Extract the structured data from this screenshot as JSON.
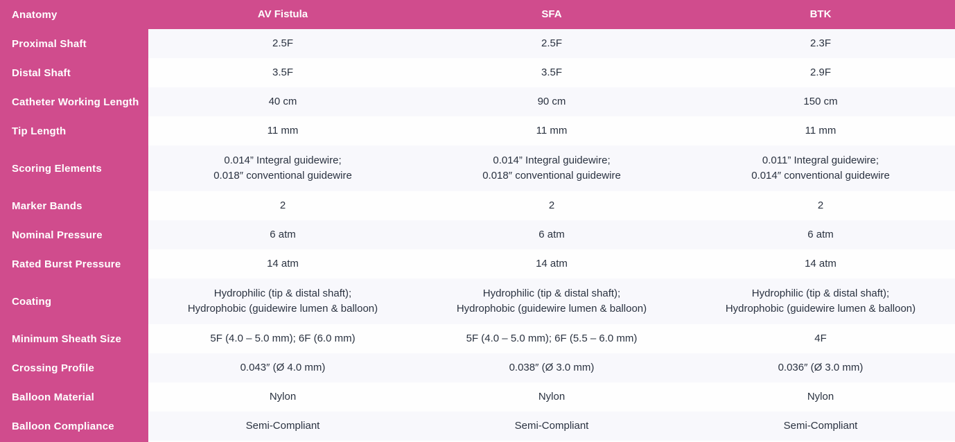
{
  "accent_color": "#D04C8D",
  "row_alt_color": "#F8F8FC",
  "row_base_color": "#FEFEFE",
  "text_color": "#2A3240",
  "chart_data": {
    "type": "table",
    "corner_label": "Anatomy",
    "columns": [
      "AV Fistula",
      "SFA",
      "BTK"
    ],
    "rows": [
      {
        "label": "Proximal Shaft",
        "values": [
          "2.5F",
          "2.5F",
          "2.3F"
        ]
      },
      {
        "label": "Distal Shaft",
        "values": [
          "3.5F",
          "3.5F",
          "2.9F"
        ]
      },
      {
        "label": "Catheter Working Length",
        "values": [
          "40 cm",
          "90 cm",
          "150 cm"
        ]
      },
      {
        "label": "Tip Length",
        "values": [
          "11 mm",
          "11 mm",
          "11 mm"
        ]
      },
      {
        "label": "Scoring Elements",
        "values": [
          "0.014” Integral guidewire;\n0.018″ conventional guidewire",
          "0.014” Integral guidewire;\n0.018″ conventional guidewire",
          "0.011” Integral guidewire;\n0.014″ conventional guidewire"
        ]
      },
      {
        "label": "Marker Bands",
        "values": [
          "2",
          "2",
          "2"
        ]
      },
      {
        "label": "Nominal Pressure",
        "values": [
          "6 atm",
          "6 atm",
          "6 atm"
        ]
      },
      {
        "label": "Rated Burst Pressure",
        "values": [
          "14 atm",
          "14 atm",
          "14 atm"
        ]
      },
      {
        "label": "Coating",
        "values": [
          "Hydrophilic (tip & distal shaft);\nHydrophobic (guidewire lumen & balloon)",
          "Hydrophilic (tip & distal shaft);\nHydrophobic (guidewire lumen & balloon)",
          "Hydrophilic (tip & distal shaft);\nHydrophobic (guidewire lumen & balloon)"
        ]
      },
      {
        "label": "Minimum Sheath Size",
        "values": [
          "5F (4.0 – 5.0 mm); 6F (6.0 mm)",
          "5F (4.0 – 5.0 mm); 6F (5.5 – 6.0 mm)",
          "4F"
        ]
      },
      {
        "label": "Crossing Profile",
        "values": [
          "0.043″ (Ø 4.0 mm)",
          "0.038″ (Ø 3.0 mm)",
          "0.036″ (Ø 3.0 mm)"
        ]
      },
      {
        "label": "Balloon Material",
        "values": [
          "Nylon",
          "Nylon",
          "Nylon"
        ]
      },
      {
        "label": "Balloon Compliance",
        "values": [
          "Semi-Compliant",
          "Semi-Compliant",
          "Semi-Compliant"
        ]
      }
    ]
  }
}
